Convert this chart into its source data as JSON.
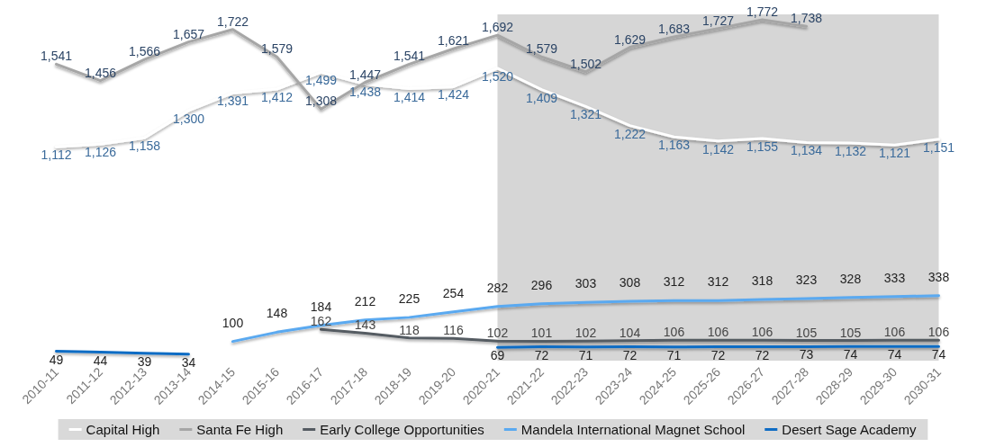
{
  "chart_data": {
    "type": "line",
    "categories": [
      "2010-11",
      "2011-12",
      "2012-13",
      "2013-14",
      "2014-15",
      "2015-16",
      "2016-17",
      "2017-18",
      "2018-19",
      "2019-20",
      "2020-21",
      "2021-22",
      "2022-23",
      "2023-24",
      "2024-25",
      "2025-26",
      "2026-27",
      "2027-28",
      "2028-29",
      "2029-30",
      "2030-31"
    ],
    "series": [
      {
        "name": "Capital High",
        "color": "#ffffff",
        "values": [
          1112,
          1126,
          1158,
          1300,
          1391,
          1412,
          1499,
          1438,
          1414,
          1424,
          1520,
          1409,
          1321,
          1222,
          1163,
          1142,
          1155,
          1134,
          1132,
          1121,
          1151
        ],
        "value_labels": [
          "1,112",
          "1,126",
          "1,158",
          "1,300",
          "1,391",
          "1,412",
          "1,499",
          "1,438",
          "1,414",
          "1,424",
          "1,520",
          "1,409",
          "1,321",
          "1,222",
          "1,163",
          "1,142",
          "1,155",
          "1,134",
          "1,132",
          "1,121",
          "1,151"
        ]
      },
      {
        "name": "Santa Fe High",
        "color": "#a6a6a6",
        "values": [
          1541,
          1456,
          1566,
          1657,
          1722,
          1579,
          1308,
          1447,
          1541,
          1621,
          1692,
          1579,
          1502,
          1629,
          1683,
          1727,
          1772,
          1738,
          null,
          null,
          null
        ],
        "value_labels": [
          "1,541",
          "1,456",
          "1,566",
          "1,657",
          "1,722",
          "1,579",
          "1,308",
          "1,447",
          "1,541",
          "1,621",
          "1,692",
          "1,579",
          "1,502",
          "1,629",
          "1,683",
          "1,727",
          "1,772",
          "1,738",
          null,
          null,
          null
        ]
      },
      {
        "name": "Early College Opportunities",
        "color": "#555b62",
        "values": [
          null,
          null,
          null,
          null,
          null,
          null,
          162,
          143,
          118,
          116,
          102,
          101,
          102,
          104,
          106,
          106,
          106,
          105,
          105,
          106,
          106
        ]
      },
      {
        "name": "Mandela International Magnet School",
        "color": "#5aa9f0",
        "values": [
          null,
          null,
          null,
          null,
          100,
          148,
          184,
          212,
          225,
          254,
          282,
          296,
          303,
          308,
          312,
          312,
          318,
          323,
          328,
          333,
          338
        ]
      },
      {
        "name": "Desert Sage Academy",
        "color": "#0f6cc4",
        "values": [
          49,
          44,
          39,
          34,
          null,
          null,
          null,
          null,
          null,
          null,
          69,
          72,
          71,
          72,
          71,
          72,
          72,
          73,
          74,
          74,
          74
        ]
      }
    ],
    "data_labels": true,
    "legend": "bottom",
    "marker": "none",
    "line_style": "solid",
    "tick_labels": "x",
    "bands": [
      {
        "axis": "x",
        "from": "2020-21",
        "to": "2030-31",
        "color": "#cfcfcf"
      }
    ]
  }
}
